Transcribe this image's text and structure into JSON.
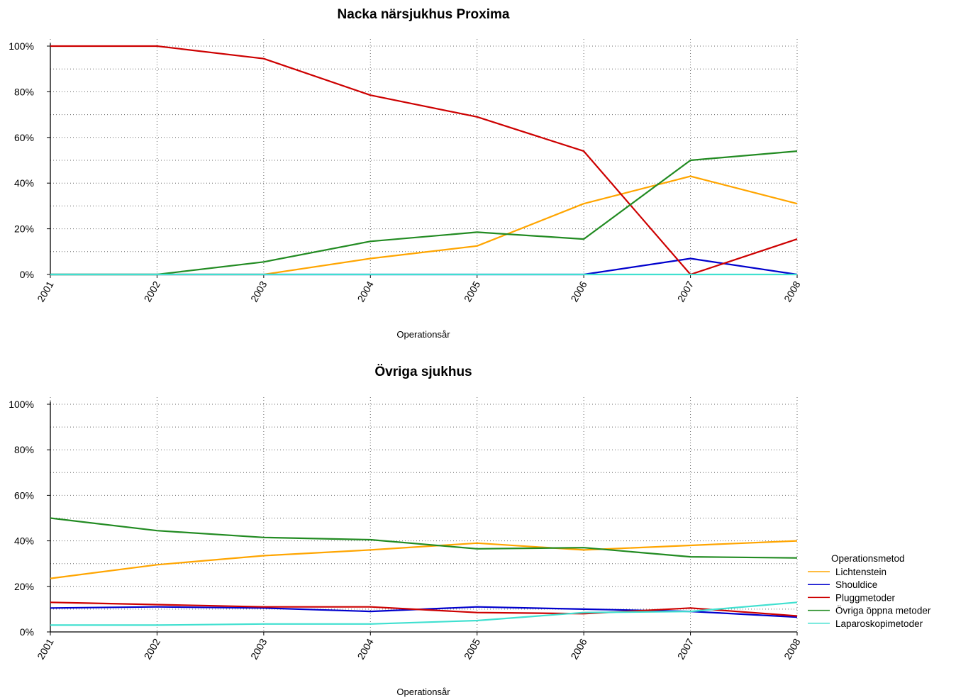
{
  "colors": {
    "Lichtenstein": "#FFA500",
    "Shouldice": "#0000CD",
    "Pluggmetoder": "#CD0000",
    "Övriga öppna metoder": "#228B22",
    "Laparoskopimetoder": "#40E0D0"
  },
  "legend": {
    "title": "Operationsmetod",
    "entries": [
      "Lichtenstein",
      "Shouldice",
      "Pluggmetoder",
      "Övriga öppna metoder",
      "Laparoskopimetoder"
    ]
  },
  "chart_data": [
    {
      "type": "line",
      "title": "Nacka närsjukhus Proxima",
      "xlabel": "Operationsår",
      "ylabel": "",
      "x": [
        "2001",
        "2002",
        "2003",
        "2004",
        "2005",
        "2006",
        "2007",
        "2008"
      ],
      "ylim": [
        0,
        100
      ],
      "yticks": [
        "0%",
        "20%",
        "40%",
        "60%",
        "80%",
        "100%"
      ],
      "grid": true,
      "series": [
        {
          "name": "Lichtenstein",
          "values": [
            0,
            0,
            0,
            7,
            12.5,
            31,
            43,
            31
          ]
        },
        {
          "name": "Shouldice",
          "values": [
            0,
            0,
            0,
            0,
            0,
            0,
            7,
            0
          ]
        },
        {
          "name": "Pluggmetoder",
          "values": [
            100,
            100,
            94.5,
            78.5,
            69,
            54,
            0,
            15.5
          ]
        },
        {
          "name": "Övriga öppna metoder",
          "values": [
            0,
            0,
            5.5,
            14.5,
            18.5,
            15.5,
            50,
            54
          ]
        },
        {
          "name": "Laparoskopimetoder",
          "values": [
            0,
            0,
            0,
            0,
            0,
            0,
            0,
            0
          ]
        }
      ]
    },
    {
      "type": "line",
      "title": "Övriga sjukhus",
      "xlabel": "Operationsår",
      "ylabel": "",
      "x": [
        "2001",
        "2002",
        "2003",
        "2004",
        "2005",
        "2006",
        "2007",
        "2008"
      ],
      "ylim": [
        0,
        100
      ],
      "yticks": [
        "0%",
        "20%",
        "40%",
        "60%",
        "80%",
        "100%"
      ],
      "grid": true,
      "legend_position": "right",
      "series": [
        {
          "name": "Lichtenstein",
          "values": [
            23.5,
            29.5,
            33.5,
            36,
            39,
            36,
            38,
            40
          ]
        },
        {
          "name": "Shouldice",
          "values": [
            10.5,
            11,
            10.5,
            9,
            11,
            10,
            9,
            6.5
          ]
        },
        {
          "name": "Pluggmetoder",
          "values": [
            13,
            12,
            11,
            11,
            8.5,
            8,
            10.5,
            7
          ]
        },
        {
          "name": "Övriga öppna metoder",
          "values": [
            50,
            44.5,
            41.5,
            40.5,
            36.5,
            37,
            33,
            32.5
          ]
        },
        {
          "name": "Laparoskopimetoder",
          "values": [
            3,
            3,
            3.5,
            3.5,
            5,
            8.5,
            9,
            13
          ]
        }
      ]
    }
  ]
}
